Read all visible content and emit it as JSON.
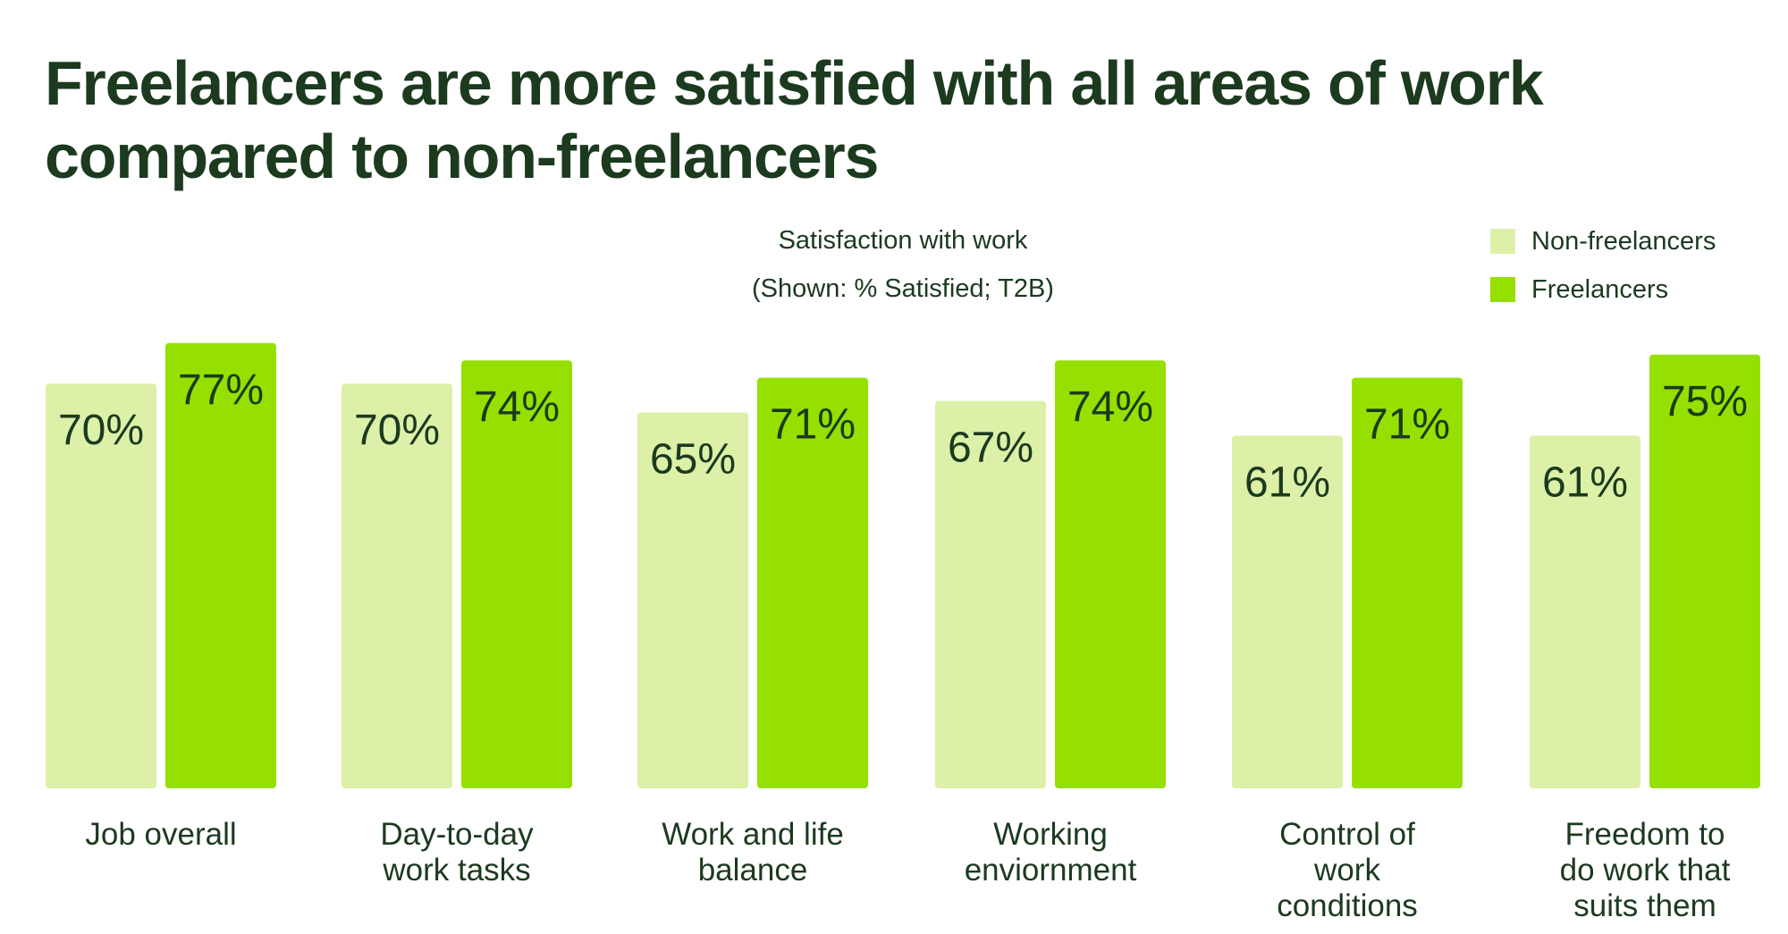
{
  "title": "Freelancers are more satisfied with all areas of work compared to non-freelancers",
  "subtitle_line1": "Satisfaction with work",
  "subtitle_line2": "(Shown: % Satisfied; T2B)",
  "legend": [
    {
      "name": "Non-freelancers",
      "color": "#ddf0a8"
    },
    {
      "name": "Freelancers",
      "color": "#95e000"
    }
  ],
  "chart_data": {
    "type": "bar",
    "title": "Freelancers are more satisfied with all areas of work compared to non-freelancers",
    "subtitle": "Satisfaction with work (Shown: % Satisfied; T2B)",
    "categories": [
      [
        "Job overall"
      ],
      [
        "Day-to-day",
        "work tasks"
      ],
      [
        "Work and life",
        "balance"
      ],
      [
        "Working",
        "enviornment"
      ],
      [
        "Control of",
        "work",
        "conditions"
      ],
      [
        "Freedom to",
        "do work that",
        "suits them"
      ]
    ],
    "series": [
      {
        "name": "Non-freelancers",
        "color": "#ddf0a8",
        "values": [
          70,
          70,
          65,
          67,
          61,
          61
        ],
        "labels": [
          "70%",
          "70%",
          "65%",
          "67%",
          "61%",
          "61%"
        ]
      },
      {
        "name": "Freelancers",
        "color": "#95e000",
        "values": [
          77,
          74,
          71,
          74,
          71,
          75
        ],
        "labels": [
          "77%",
          "74%",
          "71%",
          "74%",
          "71%",
          "75%"
        ]
      }
    ],
    "legend_position": "top-right",
    "grid": false,
    "axes_visible": false
  }
}
